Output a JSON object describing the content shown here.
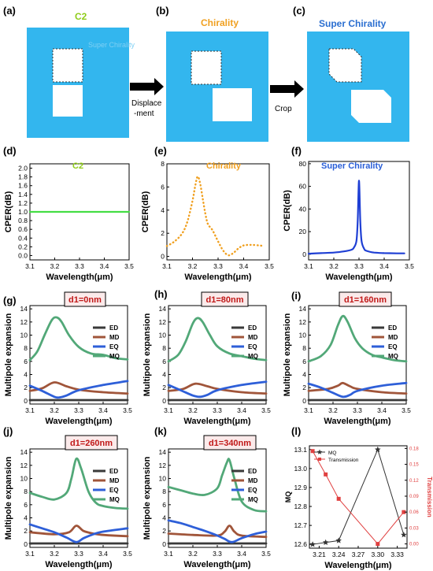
{
  "panels_top": [
    {
      "label": "(a)",
      "title": "C2",
      "title_color": "#8fcc1a"
    },
    {
      "label": "(b)",
      "title": "Chirality",
      "title_color": "#f0a020"
    },
    {
      "label": "(c)",
      "title": "Super Chirality",
      "title_color": "#2a6ed0"
    }
  ],
  "arrows": [
    {
      "label_lines": [
        "Displace",
        "-ment"
      ]
    },
    {
      "label_lines": [
        "Crop"
      ]
    }
  ],
  "faint_text": "Super Chirality",
  "colors": {
    "cyan": "#33b6ee",
    "green_line": "#44dd44",
    "orange": "#f0a020",
    "blue_line": "#1f3fd4",
    "ed": "#3a3a3a",
    "md": "#a0553a",
    "eq": "#2e5fd8",
    "mq": "#52a878",
    "d1_text": "#c01818",
    "d1_box_bg": "#fbeaea",
    "red": "#e04040"
  },
  "chart_data": [
    {
      "id": "d",
      "panel_label": "(d)",
      "type": "line",
      "title": "C2",
      "xlabel": "Wavelength(μm)",
      "ylabel": "CPER(dB)",
      "xlim": [
        3.1,
        3.5
      ],
      "ylim": [
        -0.1,
        2.1
      ],
      "xticks": [
        "3.1",
        "3.2",
        "3.3",
        "3.4",
        "3.5"
      ],
      "yticks": [
        "0.0",
        "0.2",
        "0.4",
        "0.6",
        "0.8",
        "1.0",
        "1.2",
        "1.4",
        "1.6",
        "1.8",
        "2.0"
      ],
      "series": [
        {
          "color": "#44dd44",
          "style": "solid",
          "x": [
            3.1,
            3.5
          ],
          "y": [
            1.0,
            1.0
          ]
        }
      ]
    },
    {
      "id": "e",
      "panel_label": "(e)",
      "type": "line",
      "title": "Chirality",
      "xlabel": "Wavelength(μm)",
      "ylabel": "CPER(dB)",
      "xlim": [
        3.1,
        3.5
      ],
      "ylim": [
        -0.3,
        8
      ],
      "xticks": [
        "3.1",
        "3.2",
        "3.3",
        "3.4",
        "3.5"
      ],
      "yticks": [
        "0",
        "2",
        "4",
        "6",
        "8"
      ],
      "series": [
        {
          "color": "#f0a020",
          "style": "dotted",
          "x": [
            3.1,
            3.13,
            3.16,
            3.18,
            3.2,
            3.21,
            3.22,
            3.23,
            3.24,
            3.25,
            3.26,
            3.27,
            3.28,
            3.3,
            3.32,
            3.34,
            3.36,
            3.38,
            3.4,
            3.43,
            3.46,
            3.48
          ],
          "y": [
            0.9,
            1.3,
            2.0,
            3.0,
            4.8,
            6.0,
            6.9,
            6.3,
            5.0,
            3.7,
            2.8,
            2.5,
            2.2,
            1.3,
            0.5,
            0.1,
            0.3,
            0.7,
            0.95,
            1.0,
            0.95,
            0.9
          ]
        }
      ]
    },
    {
      "id": "f",
      "panel_label": "(f)",
      "type": "line",
      "title": "Super Chirality",
      "xlabel": "Wavelength(μm)",
      "ylabel": "CPER(dB)",
      "xlim": [
        3.1,
        3.5
      ],
      "ylim": [
        -5,
        82
      ],
      "xticks": [
        "3.1",
        "3.2",
        "3.3",
        "3.4",
        "3.5"
      ],
      "yticks": [
        "0",
        "20",
        "40",
        "60",
        "80"
      ],
      "series": [
        {
          "color": "#1f3fd4",
          "style": "solid",
          "x": [
            3.1,
            3.15,
            3.2,
            3.24,
            3.27,
            3.28,
            3.29,
            3.295,
            3.3,
            3.305,
            3.31,
            3.32,
            3.33,
            3.36,
            3.4,
            3.45,
            3.48
          ],
          "y": [
            0.5,
            1.0,
            1.5,
            2.5,
            4,
            6,
            12,
            30,
            65,
            30,
            12,
            5,
            3,
            1.5,
            1.0,
            0.8,
            0.8
          ]
        }
      ]
    },
    {
      "id": "g",
      "panel_label": "(g)",
      "type": "line",
      "annotation": "d1=0nm",
      "xlabel": "Wavelength(μm)",
      "ylabel": "Multipole expansion",
      "xlim": [
        3.1,
        3.5
      ],
      "ylim": [
        -0.5,
        14.5
      ],
      "xticks": [
        "3.1",
        "3.2",
        "3.3",
        "3.4",
        "3.5"
      ],
      "yticks": [
        "0",
        "2",
        "4",
        "6",
        "8",
        "10",
        "12",
        "14"
      ],
      "legend": [
        "ED",
        "MD",
        "EQ",
        "MQ"
      ],
      "series": [
        {
          "name": "ED",
          "x": [
            3.1,
            3.2,
            3.3,
            3.4,
            3.5
          ],
          "y": [
            0.1,
            0.1,
            0.1,
            0.1,
            0.1
          ]
        },
        {
          "name": "MD",
          "x": [
            3.1,
            3.15,
            3.2,
            3.25,
            3.3,
            3.4,
            3.5
          ],
          "y": [
            1.5,
            1.9,
            2.8,
            2.2,
            1.7,
            1.3,
            1.1
          ]
        },
        {
          "name": "EQ",
          "x": [
            3.1,
            3.15,
            3.2,
            3.22,
            3.25,
            3.3,
            3.4,
            3.5
          ],
          "y": [
            2.3,
            1.5,
            0.6,
            0.5,
            0.8,
            1.6,
            2.4,
            3.0
          ]
        },
        {
          "name": "MQ",
          "x": [
            3.1,
            3.13,
            3.16,
            3.19,
            3.21,
            3.23,
            3.26,
            3.3,
            3.35,
            3.4,
            3.45,
            3.5
          ],
          "y": [
            6.2,
            7.5,
            10.0,
            12.3,
            12.7,
            12.0,
            10.0,
            8.2,
            7.2,
            7.0,
            6.5,
            6.3
          ]
        }
      ]
    },
    {
      "id": "h",
      "panel_label": "(h)",
      "type": "line",
      "annotation": "d1=80nm",
      "xlabel": "Wavelength(μm)",
      "ylabel": "Multipole expansion",
      "xlim": [
        3.1,
        3.5
      ],
      "ylim": [
        -0.5,
        14.5
      ],
      "xticks": [
        "3.1",
        "3.2",
        "3.3",
        "3.4",
        "3.5"
      ],
      "yticks": [
        "0",
        "2",
        "4",
        "6",
        "8",
        "10",
        "12",
        "14"
      ],
      "legend": [
        "ED",
        "MD",
        "EQ",
        "MQ"
      ],
      "series": [
        {
          "name": "ED",
          "x": [
            3.1,
            3.2,
            3.3,
            3.4,
            3.5
          ],
          "y": [
            0.1,
            0.1,
            0.1,
            0.1,
            0.1
          ]
        },
        {
          "name": "MD",
          "x": [
            3.1,
            3.16,
            3.21,
            3.26,
            3.3,
            3.4,
            3.5
          ],
          "y": [
            1.5,
            1.8,
            2.6,
            2.2,
            1.8,
            1.3,
            1.1
          ]
        },
        {
          "name": "EQ",
          "x": [
            3.1,
            3.15,
            3.2,
            3.23,
            3.26,
            3.3,
            3.4,
            3.5
          ],
          "y": [
            2.4,
            1.6,
            0.8,
            0.6,
            0.9,
            1.6,
            2.4,
            2.9
          ]
        },
        {
          "name": "MQ",
          "x": [
            3.1,
            3.14,
            3.17,
            3.2,
            3.22,
            3.24,
            3.27,
            3.3,
            3.35,
            3.4,
            3.45,
            3.5
          ],
          "y": [
            6.0,
            7.0,
            9.0,
            11.8,
            12.6,
            12.0,
            10.0,
            8.3,
            7.2,
            6.8,
            6.4,
            6.2
          ]
        }
      ]
    },
    {
      "id": "i",
      "panel_label": "(i)",
      "type": "line",
      "annotation": "d1=160nm",
      "xlabel": "Wavelength(μm)",
      "ylabel": "Multipole expansion",
      "xlim": [
        3.1,
        3.5
      ],
      "ylim": [
        -0.5,
        14.5
      ],
      "xticks": [
        "3.1",
        "3.2",
        "3.3",
        "3.4",
        "3.5"
      ],
      "yticks": [
        "0",
        "2",
        "4",
        "6",
        "8",
        "10",
        "12",
        "14"
      ],
      "legend": [
        "ED",
        "MD",
        "EQ",
        "MQ"
      ],
      "series": [
        {
          "name": "ED",
          "x": [
            3.1,
            3.2,
            3.3,
            3.4,
            3.5
          ],
          "y": [
            0.1,
            0.1,
            0.1,
            0.1,
            0.1
          ]
        },
        {
          "name": "MD",
          "x": [
            3.1,
            3.18,
            3.22,
            3.24,
            3.27,
            3.3,
            3.4,
            3.5
          ],
          "y": [
            1.5,
            1.8,
            2.3,
            2.7,
            2.2,
            1.8,
            1.3,
            1.1
          ]
        },
        {
          "name": "EQ",
          "x": [
            3.1,
            3.15,
            3.2,
            3.24,
            3.27,
            3.3,
            3.4,
            3.5
          ],
          "y": [
            2.6,
            2.0,
            1.2,
            0.6,
            0.9,
            1.5,
            2.3,
            2.7
          ]
        },
        {
          "name": "MQ",
          "x": [
            3.1,
            3.15,
            3.19,
            3.22,
            3.24,
            3.26,
            3.29,
            3.32,
            3.36,
            3.4,
            3.45,
            3.5
          ],
          "y": [
            6.0,
            6.8,
            8.5,
            11.5,
            12.9,
            12.0,
            9.5,
            8.0,
            7.0,
            6.6,
            6.2,
            6.0
          ]
        }
      ]
    },
    {
      "id": "j",
      "panel_label": "(j)",
      "type": "line",
      "annotation": "d1=260nm",
      "xlabel": "Wavelength(μm)",
      "ylabel": "Multipole expansion",
      "xlim": [
        3.1,
        3.5
      ],
      "ylim": [
        -0.5,
        14.5
      ],
      "xticks": [
        "3.1",
        "3.2",
        "3.3",
        "3.4",
        "3.5"
      ],
      "yticks": [
        "0",
        "2",
        "4",
        "6",
        "8",
        "10",
        "12",
        "14"
      ],
      "legend": [
        "ED",
        "MD",
        "EQ",
        "MQ"
      ],
      "series": [
        {
          "name": "ED",
          "x": [
            3.1,
            3.2,
            3.3,
            3.4,
            3.5
          ],
          "y": [
            0.1,
            0.1,
            0.1,
            0.1,
            0.1
          ]
        },
        {
          "name": "MD",
          "x": [
            3.1,
            3.2,
            3.26,
            3.29,
            3.32,
            3.36,
            3.4,
            3.5
          ],
          "y": [
            1.8,
            1.5,
            1.8,
            2.8,
            2.0,
            1.6,
            1.4,
            1.2
          ]
        },
        {
          "name": "EQ",
          "x": [
            3.1,
            3.15,
            3.2,
            3.25,
            3.29,
            3.32,
            3.36,
            3.4,
            3.5
          ],
          "y": [
            3.0,
            2.4,
            1.8,
            1.0,
            0.3,
            0.9,
            1.5,
            1.9,
            2.4
          ]
        },
        {
          "name": "MQ",
          "x": [
            3.1,
            3.15,
            3.2,
            3.25,
            3.27,
            3.29,
            3.31,
            3.34,
            3.37,
            3.4,
            3.45,
            3.5
          ],
          "y": [
            7.8,
            7.2,
            6.8,
            7.8,
            10.0,
            13.0,
            11.5,
            8.0,
            6.3,
            5.8,
            5.5,
            5.4
          ]
        }
      ]
    },
    {
      "id": "k",
      "panel_label": "(k)",
      "type": "line",
      "annotation": "d1=340nm",
      "xlabel": "Wavelength(μm)",
      "ylabel": "Multipole expansion",
      "xlim": [
        3.1,
        3.5
      ],
      "ylim": [
        -0.5,
        14.5
      ],
      "xticks": [
        "3.1",
        "3.2",
        "3.3",
        "3.4",
        "3.5"
      ],
      "yticks": [
        "0",
        "2",
        "4",
        "6",
        "8",
        "10",
        "12",
        "14"
      ],
      "legend": [
        "ED",
        "MD",
        "EQ",
        "MQ"
      ],
      "series": [
        {
          "name": "ED",
          "x": [
            3.1,
            3.2,
            3.3,
            3.4,
            3.5
          ],
          "y": [
            0.1,
            0.1,
            0.1,
            0.1,
            0.1
          ]
        },
        {
          "name": "MD",
          "x": [
            3.1,
            3.2,
            3.3,
            3.33,
            3.35,
            3.37,
            3.4,
            3.5
          ],
          "y": [
            1.6,
            1.4,
            1.3,
            1.9,
            2.8,
            1.9,
            1.3,
            1.1
          ]
        },
        {
          "name": "EQ",
          "x": [
            3.1,
            3.15,
            3.2,
            3.25,
            3.3,
            3.33,
            3.36,
            3.4,
            3.45,
            3.5
          ],
          "y": [
            3.6,
            3.2,
            2.6,
            2.0,
            1.3,
            0.8,
            0.3,
            0.9,
            1.5,
            1.9
          ]
        },
        {
          "name": "MQ",
          "x": [
            3.1,
            3.15,
            3.2,
            3.25,
            3.3,
            3.32,
            3.34,
            3.35,
            3.37,
            3.4,
            3.45,
            3.5
          ],
          "y": [
            8.7,
            8.2,
            7.7,
            7.5,
            8.5,
            10.5,
            12.5,
            12.8,
            10.0,
            6.5,
            5.2,
            5.0
          ]
        }
      ]
    },
    {
      "id": "l",
      "panel_label": "(l)",
      "type": "line",
      "xlabel": "Wavelength(μm)",
      "ylabel": "MQ",
      "y2label": "Transmission",
      "xlim": [
        3.195,
        3.345
      ],
      "ylim": [
        12.58,
        13.12
      ],
      "y2lim": [
        -0.008,
        0.185
      ],
      "xticks": [
        "3.21",
        "3.24",
        "3.27",
        "3.30",
        "3.33"
      ],
      "yticks": [
        "12.6",
        "12.7",
        "12.8",
        "12.9",
        "13.0",
        "13.1"
      ],
      "y2ticks": [
        "0.00",
        "0.03",
        "0.06",
        "0.09",
        "0.12",
        "0.15",
        "0.18"
      ],
      "legend": [
        "MQ",
        "Transmission"
      ],
      "series": [
        {
          "name": "MQ",
          "axis": "left",
          "marker": "star",
          "color": "#333333",
          "x": [
            3.2,
            3.22,
            3.24,
            3.3,
            3.34
          ],
          "y": [
            12.6,
            12.61,
            12.62,
            13.1,
            12.65
          ]
        },
        {
          "name": "Transmission",
          "axis": "right",
          "marker": "square",
          "color": "#e04040",
          "x": [
            3.2,
            3.22,
            3.24,
            3.3,
            3.34
          ],
          "y": [
            0.175,
            0.131,
            0.085,
            0.0,
            0.06
          ]
        }
      ]
    }
  ]
}
